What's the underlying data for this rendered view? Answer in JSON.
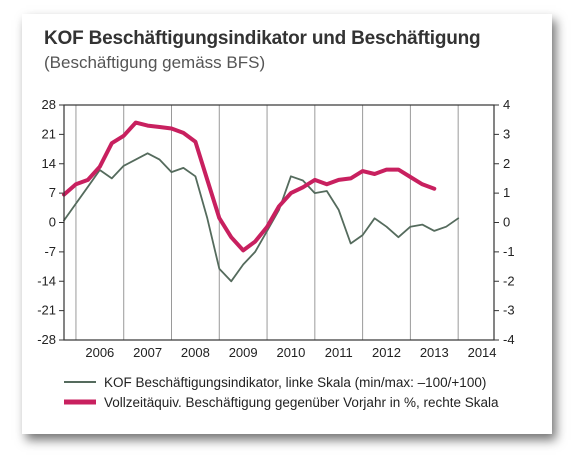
{
  "chart_data": {
    "type": "line",
    "title": "KOF Beschäftigungsindikator und Beschäftigung",
    "subtitle": "(Beschäftigung gemäss BFS)",
    "x_categories": [
      "2006",
      "2007",
      "2008",
      "2009",
      "2010",
      "2011",
      "2012",
      "2013",
      "2014"
    ],
    "x_range": [
      2005.75,
      2014.75
    ],
    "left_axis": {
      "ylim": [
        -28,
        28
      ],
      "ticks": [
        "28",
        "21",
        "14",
        "7",
        "0",
        "-7",
        "-14",
        "-21",
        "-28"
      ]
    },
    "right_axis": {
      "ylim": [
        -4,
        4
      ],
      "ticks": [
        "4",
        "3",
        "2",
        "1",
        "0",
        "-1",
        "-2",
        "-3",
        "-4"
      ]
    },
    "grid": "vertical",
    "legend_position": "bottom",
    "series": [
      {
        "name": "KOF Beschäftigungsindikator, linke Skala (min/max: –100/+100)",
        "axis": "left",
        "color": "#556b5d",
        "x": [
          2005.75,
          2006.0,
          2006.25,
          2006.5,
          2006.75,
          2007.0,
          2007.25,
          2007.5,
          2007.75,
          2008.0,
          2008.25,
          2008.5,
          2008.75,
          2009.0,
          2009.25,
          2009.5,
          2009.75,
          2010.0,
          2010.25,
          2010.5,
          2010.75,
          2011.0,
          2011.25,
          2011.5,
          2011.75,
          2012.0,
          2012.25,
          2012.5,
          2012.75,
          2013.0,
          2013.25,
          2013.5,
          2013.75,
          2014.0
        ],
        "values": [
          0.5,
          4.5,
          8.5,
          12.5,
          10.5,
          13.5,
          15,
          16.5,
          15,
          12,
          13,
          11,
          1,
          -11,
          -14,
          -10,
          -7,
          -2,
          3,
          11,
          10,
          7,
          7.5,
          3,
          -5,
          -3,
          1,
          -1,
          -3.5,
          -1,
          -0.5,
          -2,
          -1,
          1
        ]
      },
      {
        "name": "Vollzeitäquiv. Beschäftigung gegenüber Vorjahr in %, rechte Skala",
        "axis": "right",
        "color": "#c8205f",
        "x": [
          2005.75,
          2006.0,
          2006.25,
          2006.5,
          2006.75,
          2007.0,
          2007.25,
          2007.5,
          2007.75,
          2008.0,
          2008.25,
          2008.5,
          2008.75,
          2009.0,
          2009.25,
          2009.5,
          2009.75,
          2010.0,
          2010.25,
          2010.5,
          2010.75,
          2011.0,
          2011.25,
          2011.5,
          2011.75,
          2012.0,
          2012.25,
          2012.5,
          2012.75,
          2013.0,
          2013.25,
          2013.5
        ],
        "values": [
          0.95,
          1.3,
          1.45,
          1.9,
          2.7,
          2.95,
          3.4,
          3.3,
          3.25,
          3.2,
          3.05,
          2.75,
          1.45,
          0.15,
          -0.5,
          -0.95,
          -0.65,
          -0.15,
          0.55,
          1.0,
          1.2,
          1.45,
          1.3,
          1.45,
          1.5,
          1.75,
          1.65,
          1.8,
          1.8,
          1.55,
          1.3,
          1.15
        ]
      }
    ]
  },
  "colors": {
    "frame": "#333333",
    "grid": "#9a9a9a",
    "kof_line": "#556b5d",
    "employment_line": "#c8205f"
  }
}
